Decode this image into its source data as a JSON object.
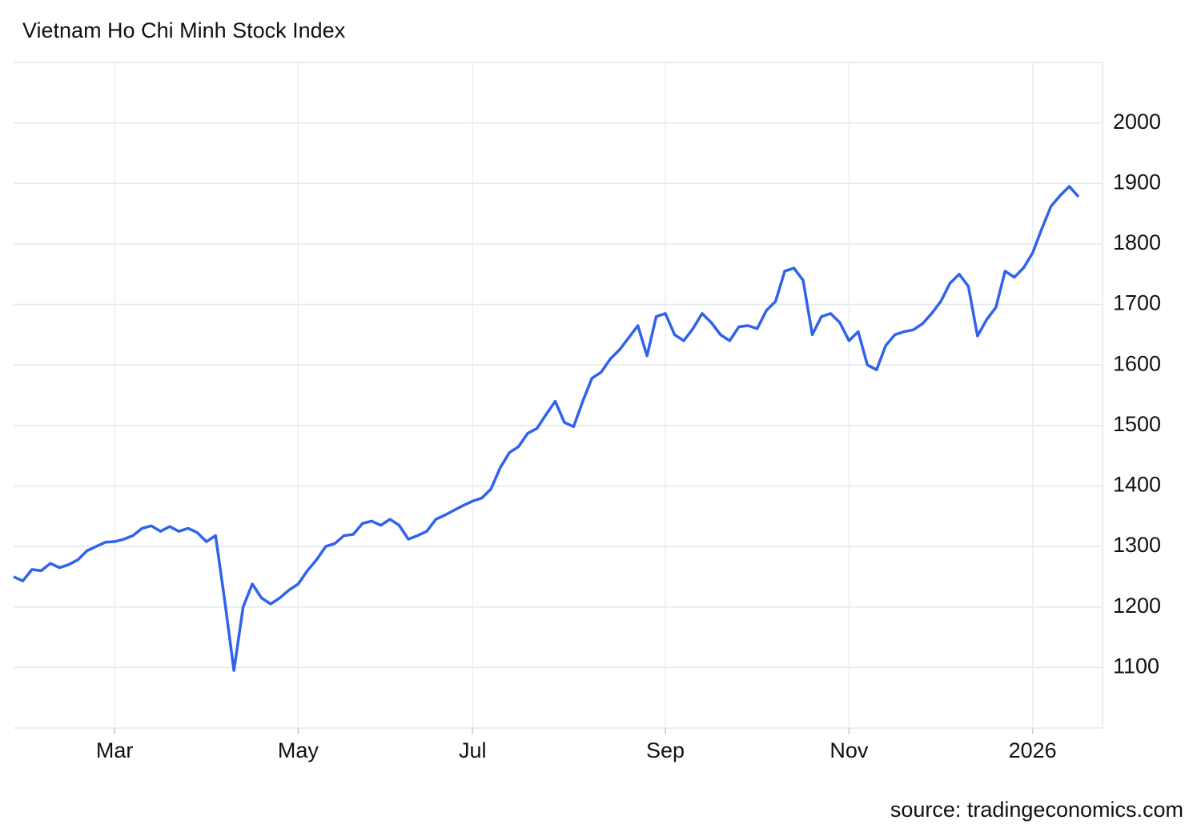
{
  "chart_data": {
    "type": "line",
    "title": "Vietnam Ho Chi Minh Stock Index",
    "source": "source: tradingeconomics.com",
    "categories": [
      null,
      null,
      null,
      null,
      null,
      null,
      null,
      null,
      null,
      null,
      null,
      "Mar",
      null,
      null,
      null,
      null,
      null,
      null,
      null,
      null,
      null,
      null,
      null,
      null,
      null,
      null,
      null,
      null,
      null,
      null,
      null,
      "May",
      null,
      null,
      null,
      null,
      null,
      null,
      null,
      null,
      null,
      null,
      null,
      null,
      null,
      null,
      null,
      null,
      null,
      null,
      "Jul",
      null,
      null,
      null,
      null,
      null,
      null,
      null,
      null,
      null,
      null,
      null,
      null,
      null,
      null,
      null,
      null,
      null,
      null,
      null,
      null,
      "Sep",
      null,
      null,
      null,
      null,
      null,
      null,
      null,
      null,
      null,
      null,
      null,
      null,
      null,
      null,
      null,
      null,
      null,
      null,
      null,
      "Nov",
      null,
      null,
      null,
      null,
      null,
      null,
      null,
      null,
      null,
      null,
      null,
      null,
      null,
      null,
      null,
      null,
      null,
      null,
      null,
      "2026",
      null,
      null,
      null,
      null,
      null
    ],
    "values": [
      1250,
      1243,
      1262,
      1260,
      1272,
      1265,
      1270,
      1278,
      1293,
      1300,
      1307,
      1308,
      1312,
      1318,
      1330,
      1334,
      1325,
      1333,
      1325,
      1330,
      1323,
      1308,
      1318,
      1210,
      1095,
      1200,
      1238,
      1215,
      1205,
      1215,
      1228,
      1238,
      1260,
      1278,
      1300,
      1305,
      1318,
      1320,
      1338,
      1342,
      1335,
      1345,
      1335,
      1312,
      1318,
      1325,
      1345,
      1352,
      1360,
      1368,
      1375,
      1380,
      1395,
      1430,
      1455,
      1465,
      1487,
      1495,
      1518,
      1540,
      1505,
      1498,
      1540,
      1578,
      1588,
      1610,
      1625,
      1645,
      1665,
      1615,
      1680,
      1685,
      1650,
      1640,
      1660,
      1685,
      1670,
      1650,
      1640,
      1663,
      1665,
      1660,
      1690,
      1705,
      1755,
      1760,
      1740,
      1650,
      1680,
      1685,
      1670,
      1640,
      1655,
      1600,
      1592,
      1632,
      1650,
      1655,
      1658,
      1668,
      1685,
      1705,
      1735,
      1750,
      1730,
      1648,
      1675,
      1695,
      1755,
      1745,
      1760,
      1785,
      1825,
      1862,
      1880,
      1895,
      1878
    ],
    "color": "#2f63ec",
    "ylim": [
      1000,
      2100
    ],
    "yticks": [
      1100,
      1200,
      1300,
      1400,
      1500,
      1600,
      1700,
      1800,
      1900,
      2000
    ],
    "grid": true
  }
}
